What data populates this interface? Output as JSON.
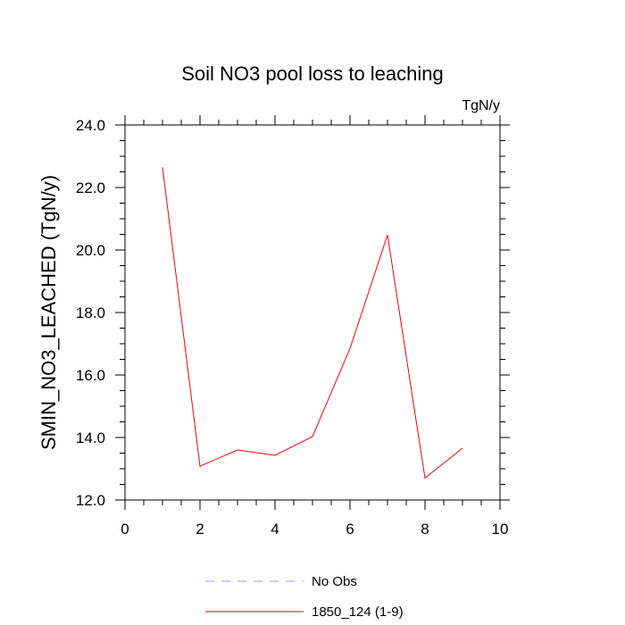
{
  "chart_data": {
    "type": "line",
    "title": "Soil NO3 pool loss to leaching",
    "units": "TgN/y",
    "xlabel": "",
    "ylabel": "SMIN_NO3_LEACHED  (TgN/y)",
    "xlim": [
      0,
      10
    ],
    "ylim": [
      12,
      24
    ],
    "x_ticks": [
      "0",
      "2",
      "4",
      "6",
      "8",
      "10"
    ],
    "y_ticks": [
      "12.0",
      "14.0",
      "16.0",
      "18.0",
      "20.0",
      "22.0",
      "24.0"
    ],
    "grid": false,
    "legend_placement": "bottom",
    "series": [
      {
        "name": "1850_124 (1-9)",
        "color": "#ff0000",
        "style": "solid",
        "x": [
          1,
          2,
          3,
          4,
          5,
          6,
          7,
          8,
          9
        ],
        "y": [
          22.65,
          13.08,
          13.6,
          13.43,
          14.03,
          16.85,
          20.48,
          12.7,
          13.66
        ]
      }
    ],
    "legend": [
      {
        "name": "No Obs",
        "color": "#9999ff",
        "style": "dashed"
      },
      {
        "name": "1850_124 (1-9)",
        "color": "#ff0000",
        "style": "solid"
      }
    ]
  }
}
